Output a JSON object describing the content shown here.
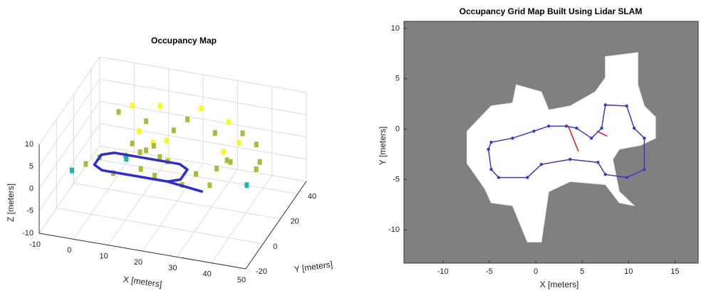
{
  "chart_data": [
    {
      "type": "scatter3d",
      "title": "Occupancy Map",
      "xlabel": "X [meters]",
      "ylabel": "Y [meters]",
      "zlabel": "Z [meters]",
      "xlim": [
        -10,
        50
      ],
      "ylim": [
        -20,
        50
      ],
      "zlim": [
        -10,
        10
      ],
      "xticks": [
        -10,
        0,
        10,
        20,
        30,
        40,
        50
      ],
      "yticks": [
        -20,
        0,
        20,
        40
      ],
      "zticks": [
        -10,
        -5,
        0,
        5,
        10
      ],
      "grid": true,
      "colormap": [
        "#3e26a8",
        "#2e87f7",
        "#1ab8b0",
        "#a5be36",
        "#f9fb15"
      ],
      "points": {
        "x": [
          0,
          4,
          8,
          12,
          16,
          20,
          24,
          28,
          32,
          36,
          40,
          -4,
          0,
          4,
          8,
          12,
          16,
          20,
          24,
          28,
          32,
          36,
          8,
          10,
          12,
          14,
          16,
          18,
          20,
          8,
          12,
          16,
          20,
          34,
          36,
          38,
          40,
          36,
          44,
          46,
          44
        ],
        "y": [
          32,
          32,
          32,
          32,
          32,
          32,
          32,
          32,
          32,
          32,
          32,
          -6,
          -6,
          -6,
          -6,
          -6,
          -6,
          -6,
          -6,
          -6,
          -6,
          -6,
          8,
          8,
          8,
          8,
          8,
          8,
          8,
          9,
          9,
          9,
          9,
          10,
          10,
          10,
          12,
          14,
          5,
          8,
          20
        ],
        "z": [
          4,
          6,
          3,
          7,
          2,
          5,
          8,
          3,
          6,
          4,
          2,
          1,
          3,
          5,
          2,
          6,
          4,
          3,
          7,
          2,
          5,
          3,
          2,
          5,
          8,
          4,
          6,
          3,
          7,
          1,
          3,
          5,
          2,
          2,
          6,
          4,
          8,
          3,
          1,
          4,
          2
        ]
      },
      "trajectory": {
        "color": "#2b2bd9",
        "x": [
          33,
          22,
          3,
          0,
          0,
          3,
          22,
          25,
          25,
          22,
          10
        ],
        "y": [
          -2,
          1,
          1,
          4,
          12,
          15,
          15,
          12,
          4,
          1,
          1
        ],
        "z": [
          0,
          0,
          0,
          0,
          0,
          0,
          0,
          0,
          0,
          0,
          0
        ]
      }
    },
    {
      "type": "occupancy",
      "title": "Occupancy Grid Map Built Using Lidar SLAM",
      "xlabel": "X [meters]",
      "ylabel": "Y [meters]",
      "xlim": [
        -14.2,
        17.5
      ],
      "ylim": [
        -13.3,
        10.7
      ],
      "xticks": [
        -10,
        -5,
        0,
        5,
        10,
        15
      ],
      "yticks": [
        -10,
        -5,
        0,
        5,
        10
      ],
      "background": "#808080",
      "free_color": "#ffffff",
      "free_area": {
        "x": [
          -7.4,
          -4.8,
          -2.5,
          -2.1,
          0.6,
          1.4,
          3.7,
          6.4,
          7.5,
          7.5,
          11.0,
          11.0,
          11.7,
          12.9,
          12.9,
          11.3,
          9.0,
          8.3,
          9.0,
          10.6,
          9.0,
          7.5,
          3.7,
          1.4,
          0.6,
          -0.9,
          -2.5,
          -4.8,
          -5.5,
          -7.4
        ],
        "y": [
          -0.2,
          2.3,
          2.6,
          4.4,
          3.7,
          1.9,
          2.3,
          3.7,
          5.1,
          7.2,
          7.6,
          4.4,
          2.3,
          1.2,
          -0.9,
          -1.6,
          -2.0,
          -3.0,
          -6.2,
          -7.6,
          -7.3,
          -5.5,
          -5.2,
          -6.2,
          -11.2,
          -11.2,
          -7.6,
          -7.3,
          -5.9,
          -3.4
        ]
      },
      "trajectory": {
        "color": "#3a3acc",
        "x": [
          -5.1,
          -4.8,
          -4.0,
          -0.9,
          0.6,
          3.7,
          6.7,
          7.5,
          9.8,
          11.7,
          11.7,
          10.6,
          9.8,
          7.5,
          7.1,
          6.0,
          4.4,
          3.3,
          1.4,
          -0.2,
          -2.5,
          -4.8,
          -5.1
        ],
        "y": [
          -2.0,
          -4.0,
          -4.8,
          -4.8,
          -3.5,
          -3.0,
          -3.3,
          -4.5,
          -4.8,
          -4.0,
          -0.9,
          0.1,
          2.3,
          2.4,
          0.1,
          -0.9,
          0.1,
          0.3,
          0.3,
          -0.2,
          -0.9,
          -1.3,
          -2.0
        ]
      },
      "loop_closures": {
        "color": "#e01010",
        "x": [
          [
            3.5,
            4.6
          ],
          [
            6.6,
            7.7
          ]
        ],
        "y": [
          [
            0.3,
            -2.2
          ],
          [
            -0.2,
            -0.7
          ]
        ]
      }
    }
  ]
}
